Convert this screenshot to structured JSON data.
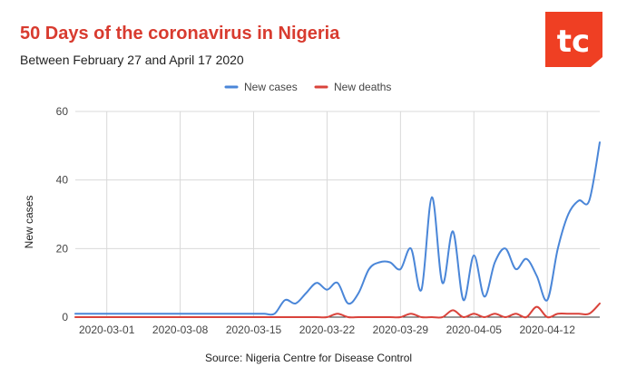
{
  "header": {
    "title": "50 Days of the coronavirus in Nigeria",
    "subtitle": "Between February 27 and April 17 2020"
  },
  "logo": {
    "icon": "tc-logo-icon",
    "text": "tc",
    "color": "#ef3f23"
  },
  "footer": {
    "source": "Source: Nigeria Centre for Disease Control"
  },
  "chart_data": {
    "type": "line",
    "title": "50 Days of the coronavirus in Nigeria",
    "subtitle": "Between February 27 and April 17 2020",
    "xlabel": "",
    "ylabel": "New cases",
    "ylim": [
      0,
      60
    ],
    "yticks": [
      0,
      20,
      40,
      60
    ],
    "xticks": [
      "2020-03-01",
      "2020-03-08",
      "2020-03-15",
      "2020-03-22",
      "2020-03-29",
      "2020-04-05",
      "2020-04-12"
    ],
    "grid": true,
    "legend": "top-center",
    "x": [
      "2020-02-27",
      "2020-02-28",
      "2020-02-29",
      "2020-03-01",
      "2020-03-02",
      "2020-03-03",
      "2020-03-04",
      "2020-03-05",
      "2020-03-06",
      "2020-03-07",
      "2020-03-08",
      "2020-03-09",
      "2020-03-10",
      "2020-03-11",
      "2020-03-12",
      "2020-03-13",
      "2020-03-14",
      "2020-03-15",
      "2020-03-16",
      "2020-03-17",
      "2020-03-18",
      "2020-03-19",
      "2020-03-20",
      "2020-03-21",
      "2020-03-22",
      "2020-03-23",
      "2020-03-24",
      "2020-03-25",
      "2020-03-26",
      "2020-03-27",
      "2020-03-28",
      "2020-03-29",
      "2020-03-30",
      "2020-03-31",
      "2020-04-01",
      "2020-04-02",
      "2020-04-03",
      "2020-04-04",
      "2020-04-05",
      "2020-04-06",
      "2020-04-07",
      "2020-04-08",
      "2020-04-09",
      "2020-04-10",
      "2020-04-11",
      "2020-04-12",
      "2020-04-13",
      "2020-04-14",
      "2020-04-15",
      "2020-04-16",
      "2020-04-17"
    ],
    "series": [
      {
        "name": "New cases",
        "color": "#4a86d8",
        "values": [
          1,
          1,
          1,
          1,
          1,
          1,
          1,
          1,
          1,
          1,
          1,
          1,
          1,
          1,
          1,
          1,
          1,
          1,
          1,
          1,
          5,
          4,
          7,
          10,
          8,
          10,
          4,
          7,
          14,
          16,
          16,
          14,
          20,
          8,
          35,
          10,
          25,
          5,
          18,
          6,
          16,
          20,
          14,
          17,
          12,
          5,
          20,
          30,
          34,
          34,
          51
        ]
      },
      {
        "name": "New deaths",
        "color": "#d9433b",
        "values": [
          0,
          0,
          0,
          0,
          0,
          0,
          0,
          0,
          0,
          0,
          0,
          0,
          0,
          0,
          0,
          0,
          0,
          0,
          0,
          0,
          0,
          0,
          0,
          0,
          0,
          1,
          0,
          0,
          0,
          0,
          0,
          0,
          1,
          0,
          0,
          0,
          2,
          0,
          1,
          0,
          1,
          0,
          1,
          0,
          3,
          0,
          1,
          1,
          1,
          1,
          4
        ]
      }
    ]
  }
}
